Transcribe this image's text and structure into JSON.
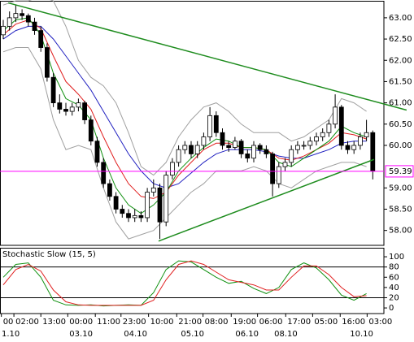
{
  "chart_data": [
    {
      "type": "candlestick",
      "open": [
        62.6,
        62.8,
        63.0,
        63.1,
        63.05,
        62.9,
        62.7,
        62.3,
        61.6,
        61.0,
        60.85,
        60.8,
        60.9,
        61.0,
        60.6,
        60.1,
        59.6,
        59.1,
        58.8,
        58.5,
        58.4,
        58.3,
        58.35,
        58.3,
        58.9,
        59.0,
        58.2,
        59.3,
        59.6,
        59.9,
        60.0,
        59.8,
        60.0,
        60.2,
        60.7,
        60.3,
        60.0,
        59.95,
        60.1,
        59.8,
        59.7,
        60.0,
        59.9,
        59.8,
        59.1,
        59.5,
        59.6,
        59.9,
        60.0,
        60.0,
        60.1,
        60.2,
        60.3,
        60.5,
        60.9,
        60.0,
        59.9,
        60.0,
        60.2,
        60.3
      ],
      "high": [
        62.95,
        63.15,
        63.3,
        63.2,
        63.1,
        63.0,
        62.8,
        62.4,
        61.7,
        61.2,
        61.0,
        61.0,
        61.1,
        61.05,
        60.7,
        60.2,
        59.7,
        59.2,
        58.9,
        58.6,
        58.5,
        58.5,
        58.45,
        59.0,
        59.2,
        59.1,
        59.4,
        59.7,
        60.0,
        60.1,
        60.1,
        60.1,
        60.3,
        60.9,
        60.8,
        60.4,
        60.1,
        60.2,
        60.15,
        59.9,
        60.1,
        60.05,
        60.0,
        59.85,
        59.6,
        59.7,
        60.0,
        60.1,
        60.1,
        60.2,
        60.3,
        60.4,
        60.6,
        61.2,
        60.95,
        60.1,
        60.1,
        60.3,
        60.6,
        60.35
      ],
      "low": [
        62.5,
        62.7,
        62.9,
        62.95,
        62.8,
        62.6,
        62.2,
        61.5,
        60.9,
        60.75,
        60.7,
        60.7,
        60.8,
        60.5,
        60.0,
        59.5,
        59.0,
        58.7,
        58.4,
        58.3,
        58.2,
        58.2,
        58.2,
        58.2,
        58.8,
        57.8,
        58.1,
        59.2,
        59.5,
        59.8,
        59.7,
        59.7,
        59.9,
        60.1,
        60.2,
        59.9,
        59.85,
        59.9,
        59.7,
        59.6,
        59.6,
        59.8,
        59.7,
        58.8,
        59.0,
        59.4,
        59.5,
        59.8,
        59.9,
        59.9,
        60.0,
        60.1,
        60.2,
        60.4,
        59.9,
        59.8,
        59.8,
        59.9,
        60.1,
        59.2
      ],
      "close": [
        62.8,
        63.0,
        63.1,
        63.05,
        62.9,
        62.7,
        62.3,
        61.6,
        61.0,
        60.85,
        60.8,
        60.9,
        61.0,
        60.6,
        60.1,
        59.6,
        59.1,
        58.8,
        58.5,
        58.4,
        58.3,
        58.35,
        58.3,
        58.9,
        59.0,
        58.2,
        59.3,
        59.6,
        59.9,
        60.0,
        59.8,
        60.0,
        60.2,
        60.7,
        60.3,
        60.0,
        59.95,
        60.1,
        59.8,
        59.7,
        60.0,
        59.9,
        59.8,
        59.1,
        59.5,
        59.6,
        59.9,
        60.0,
        60.0,
        60.1,
        60.2,
        60.3,
        60.5,
        60.9,
        60.0,
        59.9,
        60.0,
        60.2,
        60.3,
        59.4
      ],
      "up_color": "#ffffff",
      "down_color": "#000000",
      "overlay_x": [
        0,
        2,
        4,
        6,
        8,
        10,
        12,
        14,
        16,
        18,
        20,
        22,
        24,
        26,
        28,
        30,
        32,
        34,
        36,
        38,
        40,
        42,
        44,
        46,
        48,
        50,
        52,
        54,
        56,
        58
      ],
      "series": [
        {
          "color": "#a0a0a0",
          "values": [
            63.3,
            63.4,
            63.4,
            63.5,
            63.4,
            62.8,
            62.0,
            61.6,
            61.4,
            61.0,
            60.3,
            59.5,
            59.3,
            59.6,
            60.2,
            60.6,
            60.9,
            61.0,
            60.8,
            60.5,
            60.3,
            60.3,
            60.3,
            60.1,
            60.2,
            60.4,
            60.6,
            61.1,
            61.0,
            60.8
          ]
        },
        {
          "color": "#a0a0a0",
          "values": [
            62.2,
            62.3,
            62.3,
            61.8,
            60.6,
            59.9,
            60.0,
            59.9,
            59.0,
            58.2,
            57.8,
            57.9,
            58.0,
            58.3,
            58.6,
            58.9,
            59.1,
            59.4,
            59.4,
            59.4,
            59.5,
            59.4,
            59.1,
            59.0,
            59.2,
            59.4,
            59.5,
            59.6,
            59.6,
            59.5
          ]
        },
        {
          "color": "#2020c0",
          "values": [
            62.5,
            62.7,
            62.8,
            62.8,
            62.5,
            62.1,
            61.7,
            61.3,
            60.8,
            60.3,
            59.8,
            59.4,
            59.1,
            59.0,
            59.1,
            59.35,
            59.6,
            59.8,
            59.9,
            59.9,
            59.9,
            59.85,
            59.75,
            59.7,
            59.7,
            59.8,
            59.9,
            60.05,
            60.1,
            60.1
          ]
        },
        {
          "color": "#e02020",
          "values": [
            62.6,
            62.85,
            62.95,
            62.75,
            62.1,
            61.5,
            61.2,
            60.85,
            60.2,
            59.6,
            59.1,
            58.8,
            58.75,
            58.9,
            59.3,
            59.6,
            59.9,
            60.05,
            60.05,
            59.95,
            59.95,
            59.9,
            59.7,
            59.65,
            59.75,
            59.9,
            60.05,
            60.3,
            60.25,
            60.15
          ]
        },
        {
          "color": "#109010",
          "values": [
            62.7,
            62.95,
            63.0,
            62.6,
            61.7,
            61.1,
            60.95,
            60.6,
            59.7,
            59.0,
            58.6,
            58.4,
            58.6,
            58.9,
            59.4,
            59.7,
            59.95,
            60.15,
            60.1,
            59.95,
            59.95,
            59.9,
            59.6,
            59.5,
            59.7,
            59.9,
            60.1,
            60.45,
            60.3,
            60.2
          ]
        }
      ],
      "trendlines": [
        {
          "color": "#1e8c1e",
          "x": [
            0.8,
            64.4
          ],
          "y": [
            63.35,
            60.83
          ]
        },
        {
          "color": "#1e8c1e",
          "x": [
            24.8,
            59.2
          ],
          "y": [
            57.75,
            59.67
          ]
        }
      ],
      "hline": {
        "value": 59.39,
        "color": "#ff00ff"
      },
      "xlim": [
        -0.52,
        60.78
      ],
      "ylim": [
        57.65,
        63.38
      ],
      "yticks": [
        {
          "value": 63,
          "label": "63.00"
        },
        {
          "value": 62.5,
          "label": "62.50"
        },
        {
          "value": 62,
          "label": "62.00"
        },
        {
          "value": 61.5,
          "label": "61.50"
        },
        {
          "value": 61,
          "label": "61.00"
        },
        {
          "value": 60.5,
          "label": "60.50"
        },
        {
          "value": 60,
          "label": "60.00"
        },
        {
          "value": 59,
          "label": "59.00"
        },
        {
          "value": 58.5,
          "label": "58.50"
        },
        {
          "value": 58,
          "label": "58.00"
        }
      ]
    },
    {
      "type": "line",
      "title": "Stochastic Slow (15, 5)",
      "x": [
        0,
        2,
        4,
        6,
        8,
        10,
        12,
        14,
        16,
        18,
        20,
        22,
        24,
        26,
        28,
        30,
        32,
        34,
        36,
        38,
        40,
        42,
        44,
        46,
        48,
        50,
        52,
        54,
        56,
        58
      ],
      "series": [
        {
          "color": "#109010",
          "values": [
            60,
            85,
            88,
            60,
            15,
            6,
            5,
            6,
            4,
            5,
            6,
            5,
            30,
            75,
            92,
            90,
            75,
            60,
            48,
            52,
            38,
            28,
            40,
            75,
            88,
            78,
            55,
            25,
            15,
            28
          ]
        },
        {
          "color": "#e02020",
          "values": [
            45,
            75,
            85,
            72,
            35,
            12,
            6,
            5,
            5,
            5,
            5,
            5,
            15,
            55,
            85,
            92,
            85,
            70,
            55,
            50,
            45,
            35,
            35,
            60,
            82,
            82,
            65,
            40,
            22,
            24
          ]
        }
      ],
      "levels": [
        80,
        20
      ],
      "xlim": [
        -0.52,
        60.78
      ],
      "ylim": [
        -11,
        116
      ],
      "yticks": [
        100,
        80,
        60,
        40,
        20,
        0
      ],
      "xticks": [
        {
          "value": -0.3,
          "label": "00"
        },
        {
          "value": 1.7,
          "label": "02:00"
        },
        {
          "value": 6.0,
          "label": "13:00"
        },
        {
          "value": 10.3,
          "label": "00:00"
        },
        {
          "value": 14.7,
          "label": "11:00"
        },
        {
          "value": 18.8,
          "label": "23:00"
        },
        {
          "value": 23.2,
          "label": "10:00"
        },
        {
          "value": 27.7,
          "label": "21:00"
        },
        {
          "value": 31.9,
          "label": "08:00"
        },
        {
          "value": 36.4,
          "label": "19:00"
        },
        {
          "value": 40.6,
          "label": "06:00"
        },
        {
          "value": 45.1,
          "label": "17:00"
        },
        {
          "value": 49.4,
          "label": "05:00"
        },
        {
          "value": 53.8,
          "label": "16:00"
        },
        {
          "value": 58.1,
          "label": "03:00"
        }
      ],
      "date_ticks": [
        {
          "value": -0.52,
          "label": "1.10"
        },
        {
          "value": 10.3,
          "label": "03.10"
        },
        {
          "value": 19.0,
          "label": "04.10"
        },
        {
          "value": 28.1,
          "label": "05.10"
        },
        {
          "value": 36.8,
          "label": "06.10"
        },
        {
          "value": 43.0,
          "label": "08.10"
        },
        {
          "value": 55.1,
          "label": "10.10"
        }
      ]
    }
  ]
}
